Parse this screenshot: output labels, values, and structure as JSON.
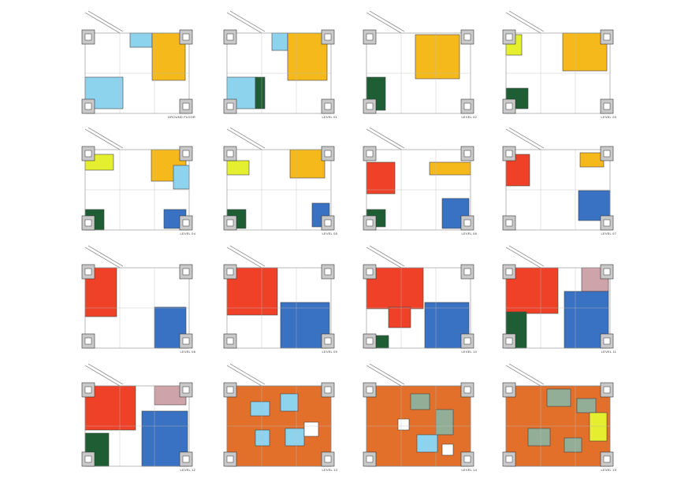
{
  "floor_plans": [
    {
      "label": "GROUND FLOOR",
      "program": [
        "light-blue",
        "yellow"
      ]
    },
    {
      "label": "LEVEL 01",
      "program": [
        "light-blue",
        "yellow",
        "dark-green"
      ]
    },
    {
      "label": "LEVEL 02",
      "program": [
        "yellow",
        "dark-green"
      ]
    },
    {
      "label": "LEVEL 03",
      "program": [
        "yellow",
        "lime",
        "dark-green"
      ]
    },
    {
      "label": "LEVEL 04",
      "program": [
        "yellow",
        "lime",
        "light-blue",
        "dark-green",
        "blue"
      ]
    },
    {
      "label": "LEVEL 05",
      "program": [
        "yellow",
        "lime",
        "dark-green",
        "blue"
      ]
    },
    {
      "label": "LEVEL 06",
      "program": [
        "red",
        "yellow",
        "dark-green",
        "blue"
      ]
    },
    {
      "label": "LEVEL 07",
      "program": [
        "red",
        "yellow",
        "blue"
      ]
    },
    {
      "label": "LEVEL 08",
      "program": [
        "red",
        "blue"
      ]
    },
    {
      "label": "LEVEL 09",
      "program": [
        "red",
        "blue"
      ]
    },
    {
      "label": "LEVEL 10",
      "program": [
        "red",
        "blue",
        "dark-green"
      ]
    },
    {
      "label": "LEVEL 11",
      "program": [
        "red",
        "blue",
        "dark-green",
        "mauve"
      ]
    },
    {
      "label": "LEVEL 12",
      "program": [
        "red",
        "blue",
        "dark-green",
        "mauve"
      ]
    },
    {
      "label": "LEVEL 13",
      "program": [
        "orange",
        "light-blue",
        "white"
      ]
    },
    {
      "label": "LEVEL 14",
      "program": [
        "orange",
        "light-blue",
        "grey-green",
        "white"
      ]
    },
    {
      "label": "LEVEL 15",
      "program": [
        "orange",
        "grey-green",
        "lime"
      ]
    }
  ],
  "colors": {
    "light-blue": "#8ed3ee",
    "yellow": "#f6b91c",
    "dark-green": "#1f5e35",
    "lime": "#e3ef2f",
    "red": "#ef4128",
    "blue": "#3a72c3",
    "mauve": "#cfa3aa",
    "orange": "#e2702b",
    "grey-green": "#93ae97",
    "white": "#ffffff",
    "core": "#c9c9c9",
    "outline": "#9a9a9a"
  }
}
